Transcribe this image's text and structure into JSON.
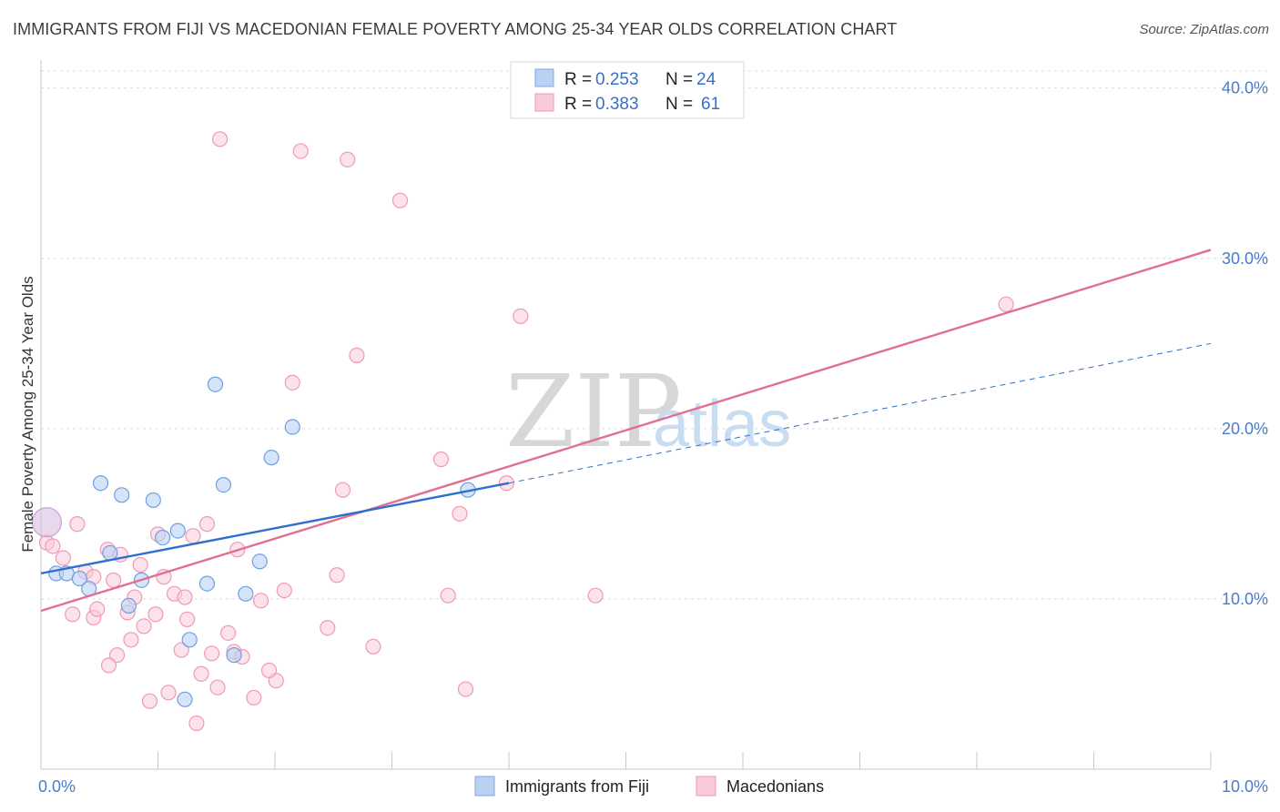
{
  "title": "IMMIGRANTS FROM FIJI VS MACEDONIAN FEMALE POVERTY AMONG 25-34 YEAR OLDS CORRELATION CHART",
  "source": "Source: ZipAtlas.com",
  "watermark": {
    "zip": "ZIP",
    "atlas": "atlas"
  },
  "colors": {
    "fiji": "#6f9fe0",
    "fiji_line": "#2e6fcc",
    "mac": "#f09ab4",
    "mac_line": "#e0708f",
    "tick": "#4a7cc9"
  },
  "chart_data": {
    "type": "scatter",
    "title": "IMMIGRANTS FROM FIJI VS MACEDONIAN FEMALE POVERTY AMONG 25-34 YEAR OLDS CORRELATION CHART",
    "xlabel": "",
    "ylabel": "Female Poverty Among 25-34 Year Olds",
    "xlim": [
      0,
      10
    ],
    "ylim": [
      0,
      41
    ],
    "x_tick_labels": [
      {
        "value": 0,
        "label": "0.0%"
      },
      {
        "value": 10,
        "label": "10.0%"
      }
    ],
    "y_tick_labels": [
      {
        "value": 10,
        "label": "10.0%"
      },
      {
        "value": 20,
        "label": "20.0%"
      },
      {
        "value": 30,
        "label": "30.0%"
      },
      {
        "value": 40,
        "label": "40.0%"
      }
    ],
    "legend": [
      {
        "name": "Immigrants from Fiji",
        "r_label": "R =",
        "r": "0.253",
        "n_label": "N =",
        "n": "24"
      },
      {
        "name": "Macedonians",
        "r_label": "R =",
        "r": "0.383",
        "n_label": "N =",
        "n": "61"
      }
    ],
    "series": [
      {
        "name": "Immigrants from Fiji",
        "points": [
          [
            0.05,
            14.5
          ],
          [
            0.13,
            11.5
          ],
          [
            0.22,
            11.5
          ],
          [
            0.33,
            11.2
          ],
          [
            0.41,
            10.6
          ],
          [
            0.51,
            16.8
          ],
          [
            0.59,
            12.7
          ],
          [
            0.69,
            16.1
          ],
          [
            0.75,
            9.6
          ],
          [
            0.86,
            11.1
          ],
          [
            0.96,
            15.8
          ],
          [
            1.04,
            13.6
          ],
          [
            1.17,
            14.0
          ],
          [
            1.27,
            7.6
          ],
          [
            1.42,
            10.9
          ],
          [
            1.49,
            22.6
          ],
          [
            1.56,
            16.7
          ],
          [
            1.65,
            6.7
          ],
          [
            1.75,
            10.3
          ],
          [
            1.87,
            12.2
          ],
          [
            1.97,
            18.3
          ],
          [
            2.15,
            20.1
          ],
          [
            3.65,
            16.4
          ],
          [
            1.23,
            4.1
          ]
        ],
        "trend": {
          "x": [
            0,
            4.0
          ],
          "y": [
            11.5,
            16.8
          ],
          "dashed_to": [
            10,
            25.0
          ]
        }
      },
      {
        "name": "Macedonians",
        "points": [
          [
            0.05,
            13.3
          ],
          [
            0.1,
            13.1
          ],
          [
            0.19,
            12.4
          ],
          [
            0.27,
            9.1
          ],
          [
            0.31,
            14.4
          ],
          [
            0.38,
            11.6
          ],
          [
            0.45,
            11.3
          ],
          [
            0.45,
            8.9
          ],
          [
            0.48,
            9.4
          ],
          [
            0.57,
            12.9
          ],
          [
            0.62,
            11.1
          ],
          [
            0.65,
            6.7
          ],
          [
            0.68,
            12.6
          ],
          [
            0.74,
            9.2
          ],
          [
            0.77,
            7.6
          ],
          [
            0.8,
            10.1
          ],
          [
            0.85,
            12.0
          ],
          [
            0.88,
            8.4
          ],
          [
            0.93,
            4.0
          ],
          [
            0.98,
            9.1
          ],
          [
            1.0,
            13.8
          ],
          [
            1.05,
            11.3
          ],
          [
            1.09,
            4.5
          ],
          [
            1.14,
            10.3
          ],
          [
            1.2,
            7.0
          ],
          [
            1.23,
            10.1
          ],
          [
            1.25,
            8.8
          ],
          [
            1.3,
            13.7
          ],
          [
            1.33,
            2.7
          ],
          [
            1.37,
            5.6
          ],
          [
            1.42,
            14.4
          ],
          [
            1.46,
            6.8
          ],
          [
            1.51,
            4.8
          ],
          [
            1.53,
            37.0
          ],
          [
            1.65,
            6.9
          ],
          [
            1.68,
            12.9
          ],
          [
            1.72,
            6.6
          ],
          [
            1.82,
            4.2
          ],
          [
            1.88,
            9.9
          ],
          [
            2.01,
            5.2
          ],
          [
            2.08,
            10.5
          ],
          [
            2.15,
            22.7
          ],
          [
            2.22,
            36.3
          ],
          [
            2.53,
            11.4
          ],
          [
            2.58,
            16.4
          ],
          [
            2.62,
            35.8
          ],
          [
            2.7,
            24.3
          ],
          [
            2.84,
            7.2
          ],
          [
            3.07,
            33.4
          ],
          [
            3.42,
            18.2
          ],
          [
            3.48,
            10.2
          ],
          [
            3.58,
            15.0
          ],
          [
            3.63,
            4.7
          ],
          [
            3.98,
            16.8
          ],
          [
            4.1,
            26.6
          ],
          [
            4.74,
            10.2
          ],
          [
            8.25,
            27.3
          ],
          [
            2.45,
            8.3
          ],
          [
            1.95,
            5.8
          ],
          [
            0.58,
            6.1
          ],
          [
            1.6,
            8.0
          ]
        ],
        "trend": {
          "x": [
            0,
            10
          ],
          "y": [
            9.3,
            30.5
          ]
        }
      }
    ]
  }
}
